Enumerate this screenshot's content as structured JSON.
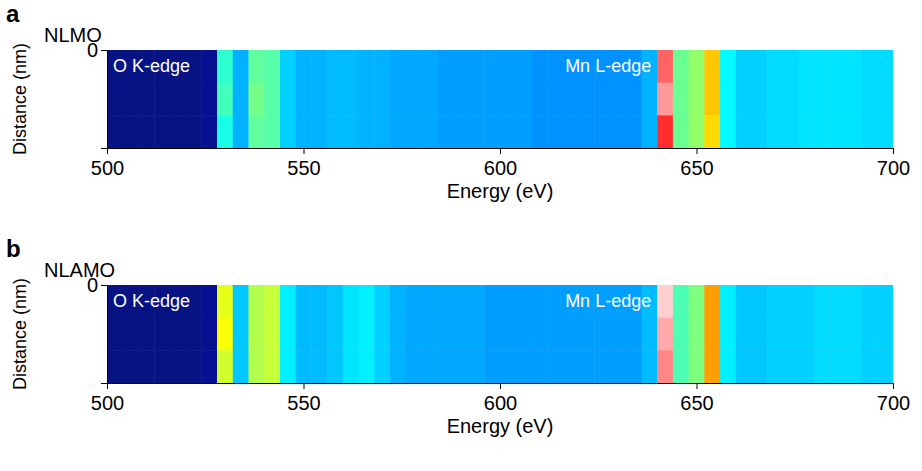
{
  "chart_data": [
    {
      "type": "heatmap",
      "panel": "a",
      "title": "NLMO",
      "xlabel": "Energy (eV)",
      "ylabel": "Distance (nm)",
      "annotations": [
        "O K-edge",
        "Mn L-edge"
      ],
      "xlim": [
        500,
        700
      ],
      "xticks": [
        500,
        550,
        600,
        650,
        700
      ],
      "ylim": [
        0,
        15
      ],
      "yticks": [
        0
      ],
      "zlim": [
        0,
        1
      ],
      "bins": [
        500,
        504,
        508,
        512,
        516,
        520,
        524,
        528,
        532,
        536,
        540,
        544,
        548,
        552,
        556,
        560,
        564,
        568,
        572,
        576,
        580,
        584,
        588,
        592,
        596,
        600,
        604,
        608,
        612,
        616,
        620,
        624,
        628,
        632,
        636,
        640,
        644,
        648,
        652,
        656,
        660,
        664,
        668,
        672,
        676,
        680,
        684,
        688,
        692,
        696,
        700
      ],
      "y_bins": [
        0,
        5,
        10,
        15
      ],
      "z": [
        [
          0.04,
          0.04,
          0.04,
          0.04,
          0.04,
          0.04,
          0.05,
          0.42,
          0.3,
          0.47,
          0.46,
          0.33,
          0.3,
          0.3,
          0.31,
          0.31,
          0.3,
          0.3,
          0.29,
          0.29,
          0.29,
          0.28,
          0.28,
          0.28,
          0.28,
          0.28,
          0.28,
          0.27,
          0.27,
          0.27,
          0.27,
          0.27,
          0.27,
          0.27,
          0.3,
          0.93,
          0.48,
          0.52,
          0.68,
          0.37,
          0.33,
          0.33,
          0.34,
          0.34,
          0.35,
          0.35,
          0.35,
          0.35,
          0.34,
          0.34
        ],
        [
          0.04,
          0.04,
          0.04,
          0.04,
          0.04,
          0.04,
          0.05,
          0.44,
          0.3,
          0.49,
          0.46,
          0.33,
          0.3,
          0.3,
          0.31,
          0.31,
          0.3,
          0.3,
          0.29,
          0.29,
          0.29,
          0.28,
          0.28,
          0.28,
          0.28,
          0.28,
          0.28,
          0.27,
          0.27,
          0.27,
          0.27,
          0.27,
          0.27,
          0.27,
          0.3,
          0.96,
          0.48,
          0.52,
          0.68,
          0.37,
          0.33,
          0.33,
          0.34,
          0.34,
          0.35,
          0.35,
          0.35,
          0.35,
          0.34,
          0.34
        ],
        [
          0.04,
          0.04,
          0.04,
          0.04,
          0.04,
          0.04,
          0.05,
          0.4,
          0.3,
          0.47,
          0.46,
          0.33,
          0.3,
          0.3,
          0.31,
          0.31,
          0.3,
          0.3,
          0.29,
          0.29,
          0.29,
          0.28,
          0.28,
          0.28,
          0.28,
          0.28,
          0.28,
          0.27,
          0.27,
          0.27,
          0.27,
          0.27,
          0.27,
          0.27,
          0.3,
          0.9,
          0.48,
          0.52,
          0.66,
          0.37,
          0.33,
          0.33,
          0.34,
          0.34,
          0.35,
          0.35,
          0.35,
          0.35,
          0.34,
          0.34
        ]
      ]
    },
    {
      "type": "heatmap",
      "panel": "b",
      "title": "NLAMO",
      "xlabel": "Energy (eV)",
      "ylabel": "Distance (nm)",
      "annotations": [
        "O K-edge",
        "Mn L-edge"
      ],
      "xlim": [
        500,
        700
      ],
      "xticks": [
        500,
        550,
        600,
        650,
        700
      ],
      "ylim": [
        0,
        15
      ],
      "yticks": [
        0
      ],
      "zlim": [
        0,
        1
      ],
      "bins": [
        500,
        504,
        508,
        512,
        516,
        520,
        524,
        528,
        532,
        536,
        540,
        544,
        548,
        552,
        556,
        560,
        564,
        568,
        572,
        576,
        580,
        584,
        588,
        592,
        596,
        600,
        604,
        608,
        612,
        616,
        620,
        624,
        628,
        632,
        636,
        640,
        644,
        648,
        652,
        656,
        660,
        664,
        668,
        672,
        676,
        680,
        684,
        688,
        692,
        696,
        700
      ],
      "y_bins": [
        0,
        5,
        10,
        15
      ],
      "z": [
        [
          0.04,
          0.04,
          0.04,
          0.04,
          0.04,
          0.04,
          0.05,
          0.6,
          0.32,
          0.55,
          0.57,
          0.36,
          0.31,
          0.31,
          0.32,
          0.35,
          0.36,
          0.33,
          0.3,
          0.29,
          0.29,
          0.29,
          0.29,
          0.29,
          0.28,
          0.28,
          0.28,
          0.28,
          0.28,
          0.28,
          0.28,
          0.28,
          0.28,
          0.28,
          0.31,
          0.99,
          0.45,
          0.5,
          0.72,
          0.36,
          0.32,
          0.32,
          0.33,
          0.33,
          0.33,
          0.34,
          0.34,
          0.34,
          0.33,
          0.33
        ],
        [
          0.04,
          0.04,
          0.04,
          0.04,
          0.04,
          0.04,
          0.05,
          0.62,
          0.32,
          0.55,
          0.57,
          0.36,
          0.31,
          0.31,
          0.32,
          0.35,
          0.36,
          0.33,
          0.3,
          0.29,
          0.29,
          0.29,
          0.29,
          0.29,
          0.28,
          0.28,
          0.28,
          0.28,
          0.28,
          0.28,
          0.28,
          0.28,
          0.28,
          0.28,
          0.31,
          0.97,
          0.45,
          0.5,
          0.72,
          0.36,
          0.32,
          0.32,
          0.33,
          0.33,
          0.33,
          0.34,
          0.34,
          0.34,
          0.33,
          0.33
        ],
        [
          0.04,
          0.04,
          0.04,
          0.04,
          0.04,
          0.04,
          0.05,
          0.58,
          0.32,
          0.55,
          0.57,
          0.36,
          0.31,
          0.31,
          0.32,
          0.35,
          0.36,
          0.33,
          0.3,
          0.29,
          0.29,
          0.29,
          0.29,
          0.29,
          0.28,
          0.28,
          0.28,
          0.28,
          0.28,
          0.28,
          0.28,
          0.28,
          0.28,
          0.28,
          0.31,
          0.95,
          0.45,
          0.5,
          0.72,
          0.36,
          0.32,
          0.32,
          0.33,
          0.33,
          0.33,
          0.34,
          0.34,
          0.34,
          0.33,
          0.33
        ]
      ]
    }
  ]
}
